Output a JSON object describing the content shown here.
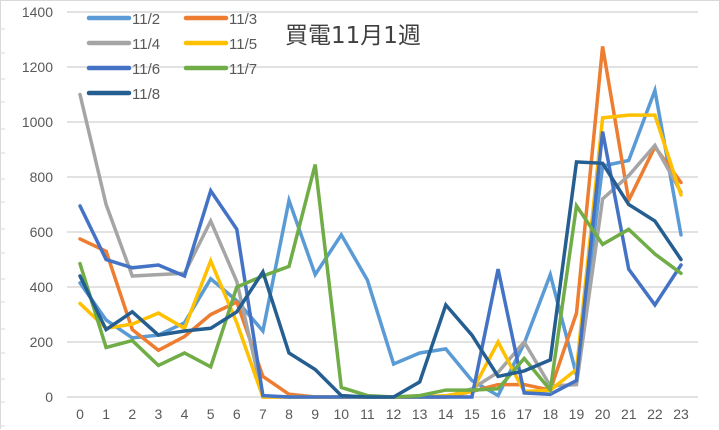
{
  "chart_data": {
    "type": "line",
    "title": "買電11月1週",
    "xlabel": "",
    "ylabel": "",
    "x": [
      0,
      1,
      2,
      3,
      4,
      5,
      6,
      7,
      8,
      9,
      10,
      11,
      12,
      13,
      14,
      15,
      16,
      17,
      18,
      19,
      20,
      21,
      22,
      23
    ],
    "ylim": [
      0,
      1400
    ],
    "yticks": [
      0,
      200,
      400,
      600,
      800,
      1000,
      1200,
      1400
    ],
    "grid": true,
    "legend_position": "top-left",
    "series": [
      {
        "name": "11/2",
        "color": "#5B9BD5",
        "values": [
          415,
          280,
          215,
          225,
          270,
          430,
          350,
          240,
          715,
          445,
          590,
          425,
          120,
          160,
          175,
          60,
          5,
          195,
          445,
          80,
          840,
          860,
          1115,
          590
        ]
      },
      {
        "name": "11/3",
        "color": "#ED7D31",
        "values": [
          575,
          530,
          245,
          170,
          220,
          300,
          345,
          75,
          10,
          0,
          0,
          0,
          0,
          0,
          0,
          20,
          45,
          45,
          25,
          305,
          1275,
          715,
          910,
          780
        ]
      },
      {
        "name": "11/4",
        "color": "#A5A5A5",
        "values": [
          1100,
          700,
          440,
          445,
          450,
          640,
          420,
          0,
          0,
          0,
          0,
          0,
          0,
          0,
          0,
          30,
          90,
          200,
          40,
          45,
          720,
          805,
          915,
          745
        ]
      },
      {
        "name": "11/5",
        "color": "#FFC000",
        "values": [
          340,
          250,
          265,
          305,
          250,
          495,
          270,
          0,
          0,
          0,
          0,
          0,
          0,
          0,
          5,
          20,
          200,
          20,
          25,
          100,
          1015,
          1025,
          1025,
          735
        ]
      },
      {
        "name": "11/6",
        "color": "#4472C4",
        "values": [
          695,
          500,
          470,
          480,
          440,
          750,
          610,
          5,
          0,
          0,
          0,
          0,
          0,
          0,
          0,
          0,
          465,
          15,
          10,
          60,
          965,
          465,
          335,
          480
        ]
      },
      {
        "name": "11/7",
        "color": "#70AD47",
        "values": [
          485,
          180,
          205,
          115,
          160,
          110,
          400,
          440,
          475,
          845,
          35,
          5,
          0,
          5,
          25,
          25,
          30,
          140,
          25,
          695,
          555,
          610,
          520,
          450
        ]
      },
      {
        "name": "11/8",
        "color": "#255E91",
        "values": [
          440,
          245,
          310,
          225,
          240,
          250,
          310,
          455,
          160,
          100,
          5,
          0,
          0,
          55,
          335,
          225,
          75,
          95,
          135,
          855,
          850,
          700,
          640,
          500
        ]
      }
    ]
  },
  "chart": {
    "title": "買電11月1週",
    "y_tick_labels": [
      "0",
      "200",
      "400",
      "600",
      "800",
      "1000",
      "1200",
      "1400"
    ],
    "x_tick_labels": [
      "0",
      "1",
      "2",
      "3",
      "4",
      "5",
      "6",
      "7",
      "8",
      "9",
      "10",
      "11",
      "12",
      "13",
      "14",
      "15",
      "16",
      "17",
      "18",
      "19",
      "20",
      "21",
      "22",
      "23"
    ],
    "legend": [
      {
        "label": "11/2",
        "color": "#5B9BD5"
      },
      {
        "label": "11/3",
        "color": "#ED7D31"
      },
      {
        "label": "11/4",
        "color": "#A5A5A5"
      },
      {
        "label": "11/5",
        "color": "#FFC000"
      },
      {
        "label": "11/6",
        "color": "#4472C4"
      },
      {
        "label": "11/7",
        "color": "#70AD47"
      },
      {
        "label": "11/8",
        "color": "#255E91"
      }
    ],
    "gridline_color": "#D9D9D9"
  }
}
